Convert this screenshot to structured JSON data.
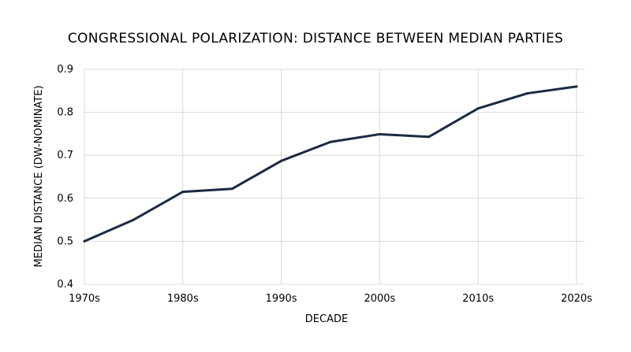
{
  "chart_data": {
    "type": "line",
    "title": "CONGRESSIONAL POLARIZATION: DISTANCE BETWEEN MEDIAN PARTIES",
    "xlabel": "DECADE",
    "ylabel": "MEDIAN DISTANCE (DW-NOMINATE)",
    "x": [
      1970,
      1975,
      1980,
      1985,
      1990,
      1995,
      2000,
      2005,
      2010,
      2015,
      2020
    ],
    "y": [
      0.5,
      0.55,
      0.615,
      0.622,
      0.687,
      0.731,
      0.749,
      0.743,
      0.809,
      0.844,
      0.86
    ],
    "xticks": [
      1970,
      1980,
      1990,
      2000,
      2010,
      2020
    ],
    "xtick_labels": [
      "1970s",
      "1980s",
      "1990s",
      "2000s",
      "2010s",
      "2020s"
    ],
    "yticks": [
      0.4,
      0.5,
      0.6,
      0.7,
      0.8,
      0.9
    ],
    "ytick_labels": [
      "0.4",
      "0.5",
      "0.6",
      "0.7",
      "0.8",
      "0.9"
    ],
    "xlim": [
      1970,
      2020
    ],
    "ylim": [
      0.4,
      0.9
    ],
    "grid": true,
    "line_color": "#1b2a41",
    "grid_color": "#d9d9d9"
  }
}
